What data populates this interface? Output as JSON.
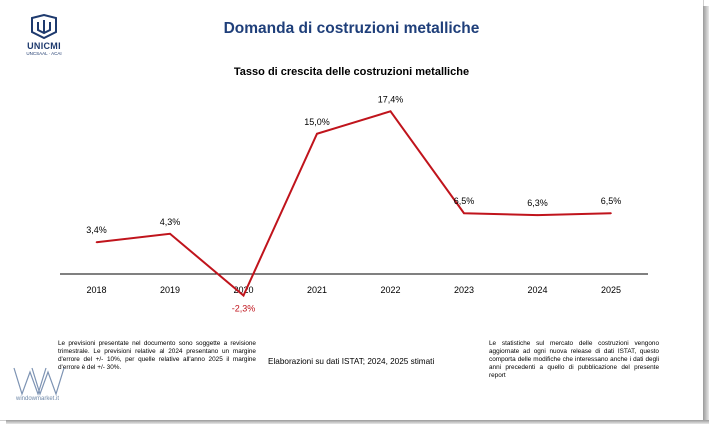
{
  "header": {
    "title": "Domanda di costruzioni metalliche",
    "logo_name": "UNICMI",
    "logo_sub": "UNCSAAL · ACAI"
  },
  "colors": {
    "title": "#1f3f7a",
    "line": "#c0141c",
    "negative_label": "#c0141c",
    "axis": "#000000"
  },
  "chart_data": {
    "type": "line",
    "title": "Tasso di crescita delle costruzioni metalliche",
    "xlabel": "",
    "ylabel": "",
    "categories": [
      "2018",
      "2019",
      "2020",
      "2021",
      "2022",
      "2023",
      "2024",
      "2025"
    ],
    "series": [
      {
        "values": [
          3.4,
          4.3,
          -2.3,
          15.0,
          17.4,
          6.5,
          6.3,
          6.5
        ],
        "labels": [
          "3,4%",
          "4,3%",
          "-2,3%",
          "15,0%",
          "17,4%",
          "6,5%",
          "6,3%",
          "6,5%"
        ],
        "color": "#c0141c"
      }
    ],
    "ylim": [
      -3,
      19
    ],
    "grid": false,
    "legend": "none"
  },
  "notes": {
    "left": "Le previsioni presentate nel documento sono soggette a revisione trimestrale. Le previsioni relative al 2024 presentano un margine d'errore del +/- 10%, per quelle relative all'anno 2025 il margine d'errore è del +/- 30%.",
    "source": "Elaborazioni su dati ISTAT; 2024, 2025 stimati",
    "right": "Le statistiche sul mercato delle costruzioni vengono aggiornate ad ogni nuova release di dati ISTAT, questo comporta delle modifiche che interessano anche i dati degli anni precedenti a quello di pubblicazione del presente report"
  },
  "watermark": {
    "text": "windowmarket.it"
  }
}
